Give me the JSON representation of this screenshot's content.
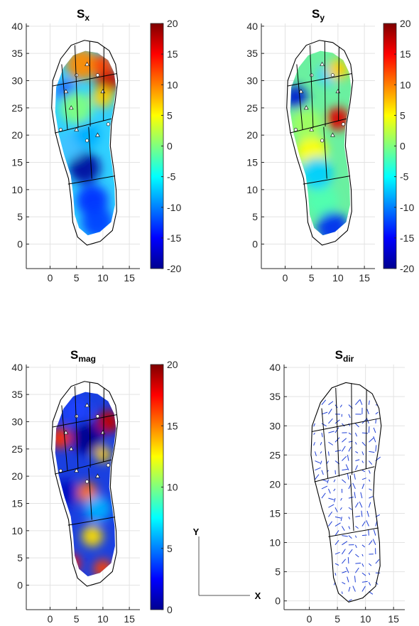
{
  "chart_data": [
    {
      "type": "heatmap",
      "title": "Sx",
      "title_main": "S",
      "title_sub": "x",
      "x_ticks": [
        0,
        5,
        10,
        15
      ],
      "y_ticks": [
        0,
        5,
        10,
        15,
        20,
        25,
        30,
        35,
        40
      ],
      "xlim": [
        -4.5,
        17
      ],
      "ylim": [
        -4.5,
        40.5
      ],
      "colorbar": {
        "colormap": "jet",
        "range": [
          -20,
          20
        ],
        "ticks": [
          20,
          15,
          10,
          5,
          0,
          -5,
          -10,
          -15,
          -20
        ]
      },
      "grid": true,
      "markers": "triangle and circle markers at sensor locations"
    },
    {
      "type": "heatmap",
      "title": "Sy",
      "title_main": "S",
      "title_sub": "y",
      "x_ticks": [
        0,
        5,
        10,
        15
      ],
      "y_ticks": [
        0,
        5,
        10,
        15,
        20,
        25,
        30,
        35,
        40
      ],
      "xlim": [
        -4.5,
        17
      ],
      "ylim": [
        -4.5,
        40.5
      ],
      "colorbar": {
        "colormap": "jet",
        "range": [
          -20,
          20
        ],
        "ticks": [
          20,
          15,
          10,
          5,
          0,
          -5,
          -10,
          -15,
          -20
        ]
      },
      "grid": true
    },
    {
      "type": "heatmap",
      "title": "Smag",
      "title_main": "S",
      "title_sub": "mag",
      "x_ticks": [
        0,
        5,
        10,
        15
      ],
      "y_ticks": [
        0,
        5,
        10,
        15,
        20,
        25,
        30,
        35,
        40
      ],
      "xlim": [
        -4.5,
        17
      ],
      "ylim": [
        -4.5,
        40.5
      ],
      "colorbar": {
        "colormap": "jet",
        "range": [
          0,
          20
        ],
        "ticks": [
          20,
          15,
          10,
          5,
          0
        ]
      },
      "grid": true
    },
    {
      "type": "scatter",
      "subtype": "quiver",
      "title": "Sdir",
      "title_main": "S",
      "title_sub": "dir",
      "x_ticks": [
        0,
        5,
        10,
        15
      ],
      "y_ticks": [
        0,
        5,
        10,
        15,
        20,
        25,
        30,
        35,
        40
      ],
      "xlim": [
        -4.5,
        17
      ],
      "ylim": [
        -1.5,
        40.5
      ],
      "arrow_color": "#1f3fd6",
      "grid": true
    }
  ],
  "axes_indicator": {
    "x_label": "X",
    "y_label": "Y"
  },
  "colors": {
    "grid": "#e3e3e3",
    "outline": "#000000",
    "tick_text": "#262626",
    "arrows": "#1f3fd6"
  }
}
